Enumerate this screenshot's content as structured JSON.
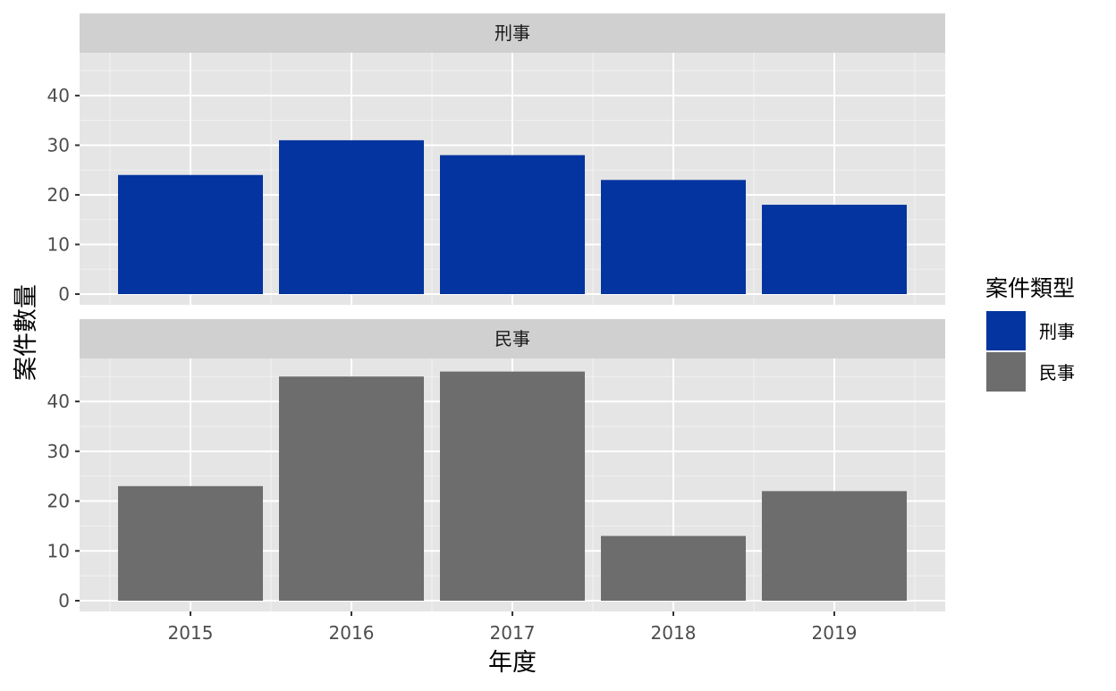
{
  "chart_data": {
    "type": "bar",
    "layout": "faceted",
    "xlabel": "年度",
    "ylabel": "案件數量",
    "categories": [
      "2015",
      "2016",
      "2017",
      "2018",
      "2019"
    ],
    "ylim": [
      0,
      48
    ],
    "yticks": [
      0,
      10,
      20,
      30,
      40
    ],
    "grid": true,
    "legend": {
      "title": "案件類型",
      "position": "right"
    },
    "facets": [
      {
        "label": "刑事",
        "color": "#03349f",
        "values": [
          24,
          31,
          28,
          23,
          18
        ]
      },
      {
        "label": "民事",
        "color": "#6d6d6d",
        "values": [
          23,
          45,
          46,
          13,
          22
        ]
      }
    ]
  }
}
